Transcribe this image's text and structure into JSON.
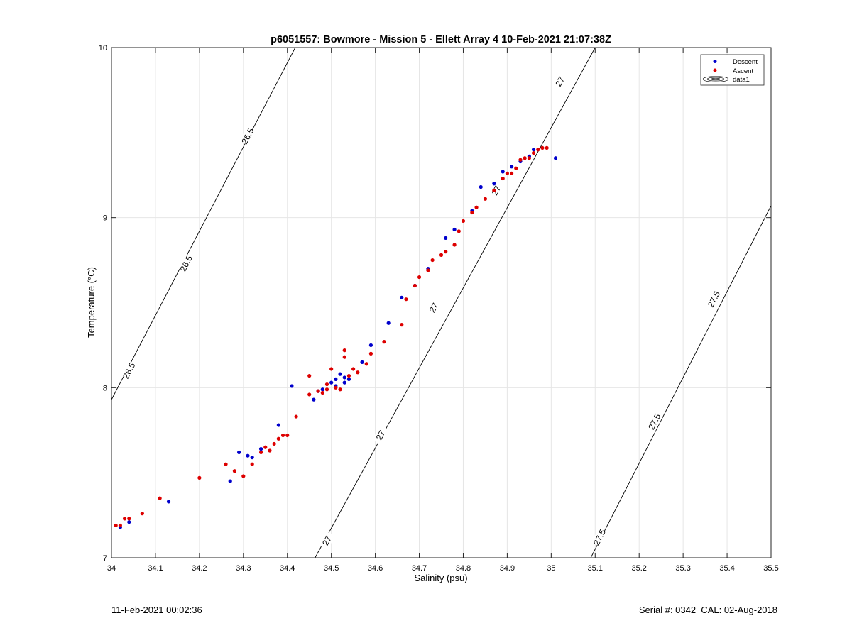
{
  "chart_data": {
    "type": "scatter",
    "title": "p6051557: Bowmore - Mission 5 - Ellett Array 4 10-Feb-2021 21:07:38Z",
    "xlabel": "Salinity (psu)",
    "ylabel": "Temperature (°C)",
    "xlim": [
      34,
      35.5
    ],
    "ylim": [
      7,
      10
    ],
    "xticks": [
      "34",
      "34.1",
      "34.2",
      "34.3",
      "34.4",
      "34.5",
      "34.6",
      "34.7",
      "34.8",
      "34.9",
      "35",
      "35.1",
      "35.2",
      "35.3",
      "35.4",
      "35.5"
    ],
    "yticks": [
      "7",
      "8",
      "9",
      "10"
    ],
    "grid": true,
    "legend_position": "top-right",
    "legend": [
      "Descent",
      "Ascent",
      "data1"
    ],
    "colors": {
      "descent": "#0000cc",
      "ascent": "#dd0000",
      "contour": "#000000"
    },
    "contours": [
      {
        "label": "26.5",
        "points": [
          [
            34.0,
            7.93
          ],
          [
            34.418,
            10.0
          ]
        ],
        "label_positions": [
          [
            34.04,
            8.1
          ],
          [
            34.17,
            8.73
          ],
          [
            34.31,
            9.48
          ]
        ]
      },
      {
        "label": "27",
        "points": [
          [
            34.463,
            7.0
          ],
          [
            35.1,
            10.0
          ]
        ],
        "label_positions": [
          [
            34.49,
            7.1
          ],
          [
            34.612,
            7.72
          ],
          [
            34.733,
            8.47
          ],
          [
            34.875,
            9.16
          ],
          [
            35.02,
            9.8
          ]
        ]
      },
      {
        "label": "27.5",
        "points": [
          [
            35.09,
            7.0
          ],
          [
            35.5,
            9.07
          ]
        ],
        "label_positions": [
          [
            35.11,
            7.12
          ],
          [
            35.235,
            7.8
          ],
          [
            35.37,
            8.52
          ]
        ]
      }
    ],
    "series": [
      {
        "name": "Descent",
        "points": [
          [
            34.02,
            7.18
          ],
          [
            34.04,
            7.21
          ],
          [
            34.13,
            7.33
          ],
          [
            34.27,
            7.45
          ],
          [
            34.29,
            7.62
          ],
          [
            34.31,
            7.6
          ],
          [
            34.32,
            7.59
          ],
          [
            34.34,
            7.64
          ],
          [
            34.38,
            7.78
          ],
          [
            34.41,
            8.01
          ],
          [
            34.46,
            7.93
          ],
          [
            34.47,
            7.98
          ],
          [
            34.48,
            7.99
          ],
          [
            34.5,
            8.03
          ],
          [
            34.51,
            8.05
          ],
          [
            34.51,
            8.01
          ],
          [
            34.52,
            8.08
          ],
          [
            34.53,
            8.03
          ],
          [
            34.53,
            8.06
          ],
          [
            34.54,
            8.05
          ],
          [
            34.57,
            8.15
          ],
          [
            34.59,
            8.25
          ],
          [
            34.63,
            8.38
          ],
          [
            34.66,
            8.53
          ],
          [
            34.69,
            8.6
          ],
          [
            34.72,
            8.7
          ],
          [
            34.76,
            8.88
          ],
          [
            34.78,
            8.93
          ],
          [
            34.82,
            9.04
          ],
          [
            34.84,
            9.18
          ],
          [
            34.87,
            9.2
          ],
          [
            34.89,
            9.27
          ],
          [
            34.91,
            9.3
          ],
          [
            34.93,
            9.33
          ],
          [
            34.95,
            9.36
          ],
          [
            34.96,
            9.4
          ],
          [
            35.01,
            9.35
          ]
        ]
      },
      {
        "name": "Ascent",
        "points": [
          [
            34.01,
            7.19
          ],
          [
            34.02,
            7.19
          ],
          [
            34.03,
            7.23
          ],
          [
            34.04,
            7.23
          ],
          [
            34.07,
            7.26
          ],
          [
            34.11,
            7.35
          ],
          [
            34.2,
            7.47
          ],
          [
            34.26,
            7.55
          ],
          [
            34.28,
            7.51
          ],
          [
            34.3,
            7.48
          ],
          [
            34.32,
            7.55
          ],
          [
            34.34,
            7.62
          ],
          [
            34.35,
            7.65
          ],
          [
            34.36,
            7.63
          ],
          [
            34.37,
            7.67
          ],
          [
            34.38,
            7.7
          ],
          [
            34.39,
            7.72
          ],
          [
            34.4,
            7.72
          ],
          [
            34.42,
            7.83
          ],
          [
            34.45,
            7.96
          ],
          [
            34.45,
            8.07
          ],
          [
            34.47,
            7.98
          ],
          [
            34.48,
            7.97
          ],
          [
            34.49,
            7.99
          ],
          [
            34.49,
            8.02
          ],
          [
            34.5,
            8.11
          ],
          [
            34.51,
            8.0
          ],
          [
            34.52,
            7.99
          ],
          [
            34.53,
            8.18
          ],
          [
            34.53,
            8.22
          ],
          [
            34.54,
            8.07
          ],
          [
            34.55,
            8.11
          ],
          [
            34.56,
            8.09
          ],
          [
            34.58,
            8.14
          ],
          [
            34.59,
            8.2
          ],
          [
            34.62,
            8.27
          ],
          [
            34.66,
            8.37
          ],
          [
            34.67,
            8.52
          ],
          [
            34.69,
            8.6
          ],
          [
            34.7,
            8.65
          ],
          [
            34.72,
            8.69
          ],
          [
            34.73,
            8.75
          ],
          [
            34.75,
            8.78
          ],
          [
            34.76,
            8.8
          ],
          [
            34.78,
            8.84
          ],
          [
            34.79,
            8.92
          ],
          [
            34.8,
            8.98
          ],
          [
            34.82,
            9.03
          ],
          [
            34.83,
            9.06
          ],
          [
            34.85,
            9.11
          ],
          [
            34.87,
            9.16
          ],
          [
            34.89,
            9.23
          ],
          [
            34.9,
            9.26
          ],
          [
            34.91,
            9.26
          ],
          [
            34.92,
            9.29
          ],
          [
            34.93,
            9.34
          ],
          [
            34.94,
            9.35
          ],
          [
            34.95,
            9.35
          ],
          [
            34.96,
            9.38
          ],
          [
            34.97,
            9.4
          ],
          [
            34.98,
            9.41
          ],
          [
            34.99,
            9.41
          ]
        ]
      }
    ]
  },
  "footer": {
    "timestamp": "11-Feb-2021 00:02:36",
    "serial": "Serial #: 0342  CAL: 02-Aug-2018"
  }
}
